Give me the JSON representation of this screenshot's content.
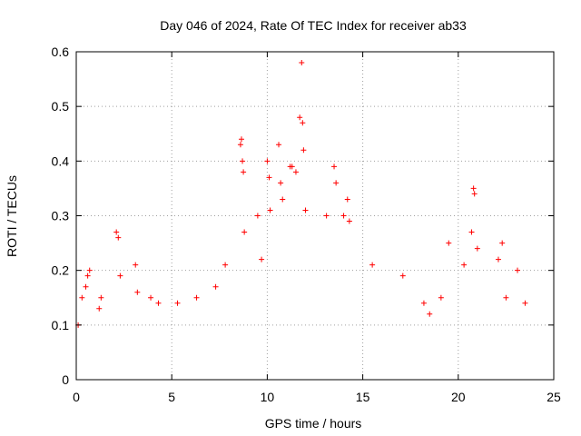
{
  "chart_data": {
    "type": "scatter",
    "title": "Day 046 of 2024, Rate Of TEC Index for receiver ab33",
    "xlabel": "GPS time / hours",
    "ylabel": "ROTI / TECUs",
    "xlim": [
      0,
      25
    ],
    "ylim": [
      0,
      0.6
    ],
    "xticks": [
      "0",
      "5",
      "10",
      "15",
      "20",
      "25"
    ],
    "yticks": [
      "0",
      "0.1",
      "0.2",
      "0.3",
      "0.4",
      "0.5",
      "0.6"
    ],
    "grid": true,
    "marker": "plus",
    "color": "#ff0000",
    "series": [
      {
        "x": [
          0.1,
          0.3,
          0.5,
          0.6,
          0.7,
          1.2,
          1.3,
          2.1,
          2.2,
          2.3,
          3.1,
          3.2,
          3.9,
          4.3,
          5.3,
          6.3,
          7.3,
          7.8,
          8.6,
          8.65,
          8.7,
          8.75,
          8.8,
          9.5,
          9.7,
          10.0,
          10.1,
          10.15,
          10.6,
          10.7,
          10.8,
          11.2,
          11.3,
          11.5,
          11.7,
          11.8,
          11.85,
          11.9,
          12.0,
          13.1,
          13.5,
          13.6,
          14.0,
          14.2,
          14.3,
          15.5,
          17.1,
          18.2,
          18.5,
          19.1,
          19.5,
          20.3,
          20.7,
          20.8,
          20.85,
          21.0,
          22.1,
          22.3,
          22.5,
          23.1,
          23.5
        ],
        "y": [
          0.1,
          0.15,
          0.17,
          0.19,
          0.2,
          0.13,
          0.15,
          0.27,
          0.26,
          0.19,
          0.21,
          0.16,
          0.15,
          0.14,
          0.14,
          0.15,
          0.17,
          0.21,
          0.43,
          0.44,
          0.4,
          0.38,
          0.27,
          0.3,
          0.22,
          0.4,
          0.37,
          0.31,
          0.43,
          0.36,
          0.33,
          0.39,
          0.39,
          0.38,
          0.48,
          0.58,
          0.47,
          0.42,
          0.31,
          0.3,
          0.39,
          0.36,
          0.3,
          0.33,
          0.29,
          0.21,
          0.19,
          0.14,
          0.12,
          0.15,
          0.25,
          0.21,
          0.27,
          0.35,
          0.34,
          0.24,
          0.22,
          0.25,
          0.15,
          0.2,
          0.14
        ]
      }
    ]
  }
}
